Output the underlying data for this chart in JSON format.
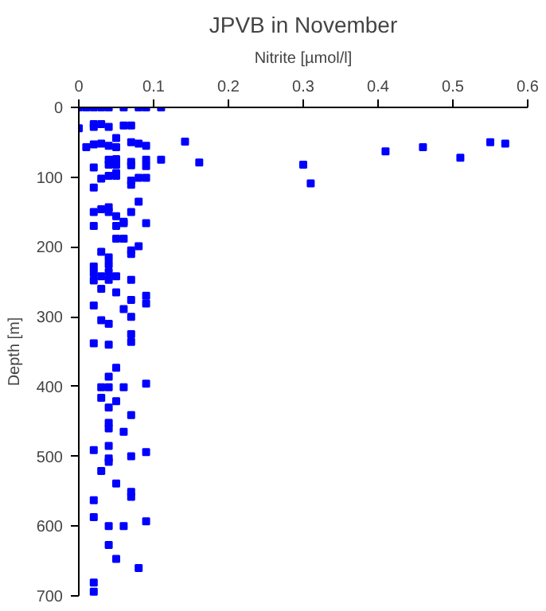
{
  "chart_data": {
    "type": "scatter",
    "title": "JPVB in November",
    "xlabel": "Nitrite [µmol/l]",
    "ylabel": "Depth [m]",
    "xlim": [
      0,
      0.6
    ],
    "xticks": [
      0,
      0.1,
      0.2,
      0.3,
      0.4,
      0.5,
      0.6
    ],
    "ylim": [
      700,
      0
    ],
    "yticks": [
      0,
      100,
      200,
      300,
      400,
      500,
      600,
      700
    ],
    "marker": "square",
    "series": [
      {
        "color": "#0000ff",
        "x": [
          0,
          0.01,
          0.02,
          0.03,
          0.04,
          0.06,
          0.08,
          0.09,
          0.11,
          0.0,
          0.02,
          0.02,
          0.03,
          0.04,
          0.06,
          0.07,
          0.01,
          0.02,
          0.03,
          0.04,
          0.05,
          0.07,
          0.08,
          0.09,
          0.05,
          0.02,
          0.04,
          0.04,
          0.05,
          0.05,
          0.07,
          0.07,
          0.09,
          0.09,
          0.11,
          0.03,
          0.04,
          0.05,
          0.05,
          0.07,
          0.08,
          0.09,
          0.02,
          0.07,
          0.08,
          0.02,
          0.03,
          0.04,
          0.04,
          0.05,
          0.06,
          0.07,
          0.09,
          0.02,
          0.05,
          0.06,
          0.05,
          0.06,
          0.08,
          0.03,
          0.04,
          0.07,
          0.07,
          0.02,
          0.04,
          0.03,
          0.04,
          0.04,
          0.02,
          0.05,
          0.07,
          0.02,
          0.03,
          0.05,
          0.09,
          0.09,
          0.07,
          0.02,
          0.06,
          0.07,
          0.03,
          0.04,
          0.07,
          0.07,
          0.02,
          0.04,
          0.05,
          0.04,
          0.03,
          0.04,
          0.06,
          0.09,
          0.03,
          0.05,
          0.04,
          0.07,
          0.04,
          0.04,
          0.06,
          0.04,
          0.02,
          0.09,
          0.07,
          0.04,
          0.04,
          0.03,
          0.05,
          0.07,
          0.07,
          0.02,
          0.02,
          0.09,
          0.04,
          0.06,
          0.04,
          0.05,
          0.08,
          0.02,
          0.02,
          0.142,
          0.161,
          0.3,
          0.31,
          0.41,
          0.46,
          0.51,
          0.55,
          0.57
        ],
        "values": [
          0,
          0,
          0,
          0,
          0,
          0,
          0,
          0,
          0,
          30,
          24,
          28,
          24,
          28,
          26,
          26,
          57,
          53,
          52,
          55,
          57,
          50,
          52,
          55,
          44,
          86,
          75,
          82,
          74,
          82,
          78,
          83,
          75,
          84,
          75,
          102,
          98,
          94,
          98,
          105,
          101,
          101,
          115,
          111,
          135,
          150,
          146,
          143,
          150,
          156,
          164,
          150,
          166,
          170,
          170,
          166,
          188,
          188,
          199,
          207,
          215,
          205,
          210,
          228,
          225,
          242,
          236,
          247,
          237,
          242,
          247,
          248,
          260,
          265,
          270,
          281,
          276,
          284,
          289,
          300,
          305,
          310,
          325,
          336,
          338,
          340,
          373,
          386,
          401,
          401,
          401,
          396,
          416,
          421,
          430,
          441,
          452,
          460,
          465,
          485,
          491,
          494,
          500,
          503,
          508,
          521,
          539,
          551,
          558,
          563,
          587,
          593,
          600,
          600,
          627,
          647,
          660,
          681,
          694,
          49,
          79,
          82,
          109,
          63,
          57,
          72,
          50,
          52
        ]
      }
    ]
  }
}
